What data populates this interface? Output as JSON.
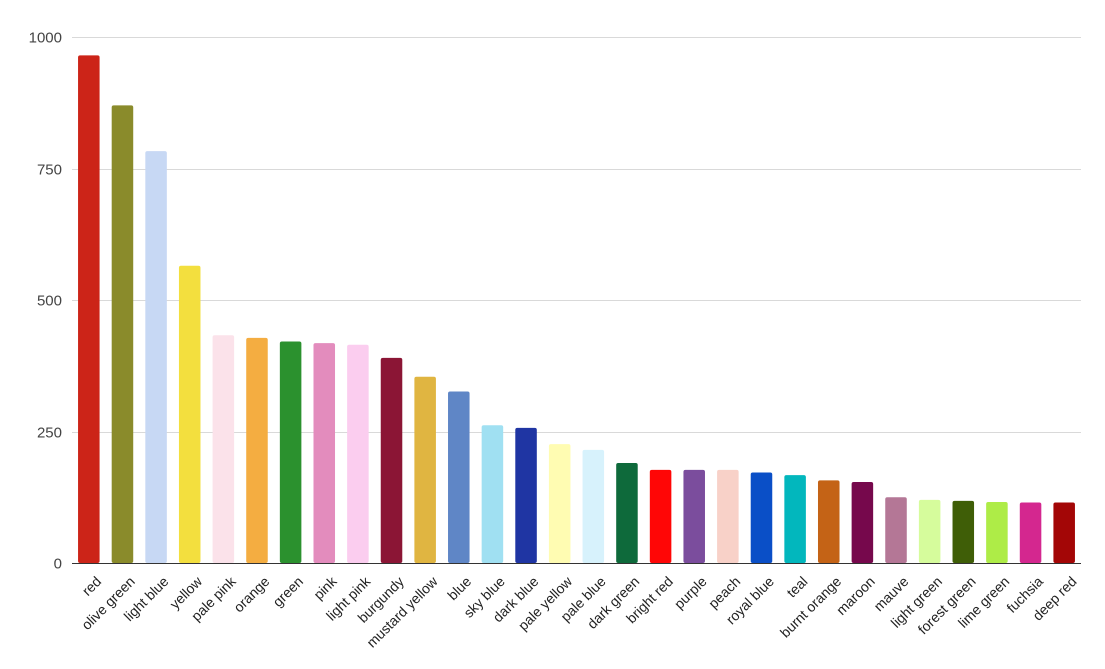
{
  "chart_data": {
    "type": "bar",
    "title": "",
    "xlabel": "",
    "ylabel": "",
    "ylim": [
      0,
      1000
    ],
    "y_ticks": [
      0,
      250,
      500,
      750,
      1000
    ],
    "y_tick_labels": [
      "0",
      "250",
      "500",
      "750",
      "1000"
    ],
    "grid": true,
    "legend": "none",
    "categories": [
      "red",
      "olive green",
      "light blue",
      "yellow",
      "pale pink",
      "orange",
      "green",
      "pink",
      "light pink",
      "burgundy",
      "mustard yellow",
      "blue",
      "sky blue",
      "dark blue",
      "pale yellow",
      "pale blue",
      "dark green",
      "bright red",
      "purple",
      "peach",
      "royal blue",
      "teal",
      "burnt orange",
      "maroon",
      "mauve",
      "light green",
      "forest green",
      "lime green",
      "fuchsia",
      "deep red"
    ],
    "values": [
      965,
      870,
      783,
      565,
      433,
      428,
      421,
      418,
      415,
      390,
      354,
      326,
      262,
      257,
      226,
      215,
      190,
      177,
      177,
      177,
      172,
      167,
      157,
      154,
      125,
      120,
      118,
      116,
      115,
      115
    ],
    "colors": [
      "#cc2418",
      "#8a8b2b",
      "#c7d8f4",
      "#f3df3e",
      "#fbe2ea",
      "#f4ad41",
      "#2b912e",
      "#e38cbd",
      "#fbcdef",
      "#8b1535",
      "#e0b541",
      "#5f86c6",
      "#a0e0f2",
      "#1f35a3",
      "#fffcb2",
      "#d7f2fc",
      "#0e6a3b",
      "#ff0606",
      "#7b4d9d",
      "#f8d1c8",
      "#0a4fc7",
      "#02b7bd",
      "#c46316",
      "#76084c",
      "#b47796",
      "#d6fc9c",
      "#3f5e07",
      "#aeec47",
      "#d4278f",
      "#a30606"
    ]
  }
}
